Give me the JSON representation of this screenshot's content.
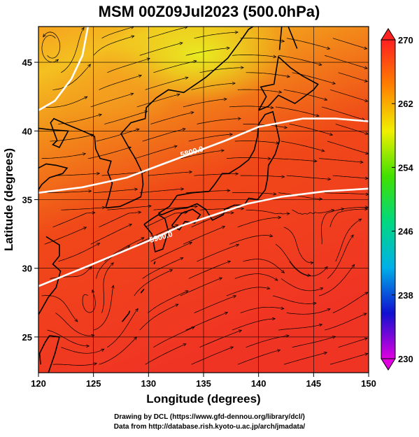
{
  "chart_data": {
    "type": "heatmap",
    "title": "MSM 00Z09Jul2023 (500.0hPa)",
    "xlabel": "Longitude (degrees)",
    "ylabel": "Latitude  (degrees)",
    "xlim": [
      120,
      150
    ],
    "ylim": [
      22.4,
      47.6
    ],
    "x_ticks": [
      120,
      125,
      130,
      135,
      140,
      145,
      150
    ],
    "y_ticks": [
      25,
      30,
      35,
      40,
      45
    ],
    "colorbar": {
      "min": 230,
      "max": 270,
      "ticks": [
        230,
        238,
        246,
        254,
        262,
        270
      ],
      "colors": [
        "#e000e0",
        "#1010d0",
        "#00b0e8",
        "#00d880",
        "#40e000",
        "#f0f000",
        "#ff8000",
        "#ff2020"
      ]
    },
    "contours": [
      {
        "label": "5800.0",
        "label_lon": 134.0,
        "label_lat": 38.3,
        "points": [
          [
            120,
            35.5
          ],
          [
            124,
            35.9
          ],
          [
            128,
            36.6
          ],
          [
            131,
            37.5
          ],
          [
            134,
            38.4
          ],
          [
            137,
            39.3
          ],
          [
            140,
            40.3
          ],
          [
            144,
            40.9
          ],
          [
            147,
            40.9
          ],
          [
            150,
            40.7
          ]
        ]
      },
      {
        "label": "5900.0",
        "label_lon": 131.2,
        "label_lat": 32.1,
        "points": [
          [
            120,
            28.7
          ],
          [
            124,
            30.0
          ],
          [
            127,
            31.0
          ],
          [
            130,
            32.0
          ],
          [
            133,
            33.1
          ],
          [
            136,
            33.9
          ],
          [
            139,
            34.7
          ],
          [
            142,
            35.2
          ],
          [
            146,
            35.6
          ],
          [
            150,
            35.8
          ]
        ]
      },
      {
        "label": "",
        "label_lon": null,
        "label_lat": null,
        "points": [
          [
            120,
            41.5
          ],
          [
            121.5,
            42.2
          ],
          [
            123,
            43.8
          ],
          [
            124,
            45.5
          ],
          [
            124.5,
            47.6
          ]
        ]
      }
    ],
    "field_samples": [
      {
        "lon": 120,
        "lat": 45,
        "value": 265
      },
      {
        "lon": 135,
        "lat": 46,
        "value": 260
      },
      {
        "lon": 135,
        "lat": 40,
        "value": 265
      },
      {
        "lon": 135,
        "lat": 35,
        "value": 268
      },
      {
        "lon": 140,
        "lat": 30,
        "value": 268
      },
      {
        "lon": 135,
        "lat": 25,
        "value": 269
      }
    ],
    "grid": true,
    "legend": "right"
  },
  "footer": {
    "line1": "Drawing by DCL (https://www.gfd-dennou.org/library/dcl/)",
    "line2": "Data from http://database.rish.kyoto-u.ac.jp/arch/jmadata/"
  }
}
